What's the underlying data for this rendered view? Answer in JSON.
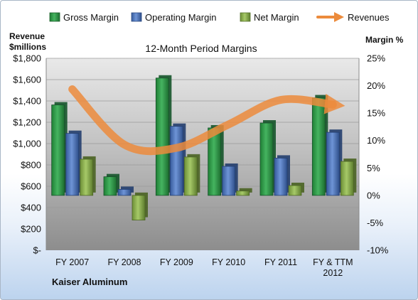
{
  "chart_data": {
    "type": "bar",
    "title": "12-Month Period Margins",
    "company": "Kaiser Aluminum",
    "categories": [
      "FY 2007",
      "FY 2008",
      "FY 2009",
      "FY 2010",
      "FY 2011",
      "FY & TTM 2012"
    ],
    "category_lines": [
      [
        "FY 2007"
      ],
      [
        "FY 2008"
      ],
      [
        "FY 2009"
      ],
      [
        "FY 2010"
      ],
      [
        "FY 2011"
      ],
      [
        "FY & TTM",
        "2012"
      ]
    ],
    "left_axis": {
      "title_lines": [
        "Revenue",
        "$millions"
      ],
      "range": [
        0,
        1800
      ],
      "tick_labels": [
        "$-",
        "$200",
        "$400",
        "$600",
        "$800",
        "$1,000",
        "$1,200",
        "$1,400",
        "$1,600",
        "$1,800"
      ]
    },
    "right_axis": {
      "title": "Margin %",
      "range": [
        -10,
        25
      ],
      "tick_labels": [
        "-10%",
        "-5%",
        "0%",
        "5%",
        "10%",
        "15%",
        "20%",
        "25%"
      ]
    },
    "series": [
      {
        "name": "Gross Margin",
        "kind": "bar",
        "axis": "right",
        "color": "#2e9a48",
        "values": [
          16.5,
          3.4,
          21.4,
          12.3,
          13.2,
          17.8
        ]
      },
      {
        "name": "Operating Margin",
        "kind": "bar",
        "axis": "right",
        "color": "#4e77c0",
        "values": [
          11.3,
          1.1,
          12.6,
          5.3,
          6.8,
          11.5
        ]
      },
      {
        "name": "Net Margin",
        "kind": "bar",
        "axis": "right",
        "color": "#8eb54e",
        "values": [
          6.6,
          -4.5,
          7.0,
          0.8,
          1.8,
          6.2
        ]
      },
      {
        "name": "Revenues",
        "kind": "line",
        "axis": "left",
        "color": "#ec8b3c",
        "values": [
          1510,
          990,
          960,
          1180,
          1410,
          1365
        ]
      }
    ],
    "legend_position": "top",
    "grid": true
  }
}
